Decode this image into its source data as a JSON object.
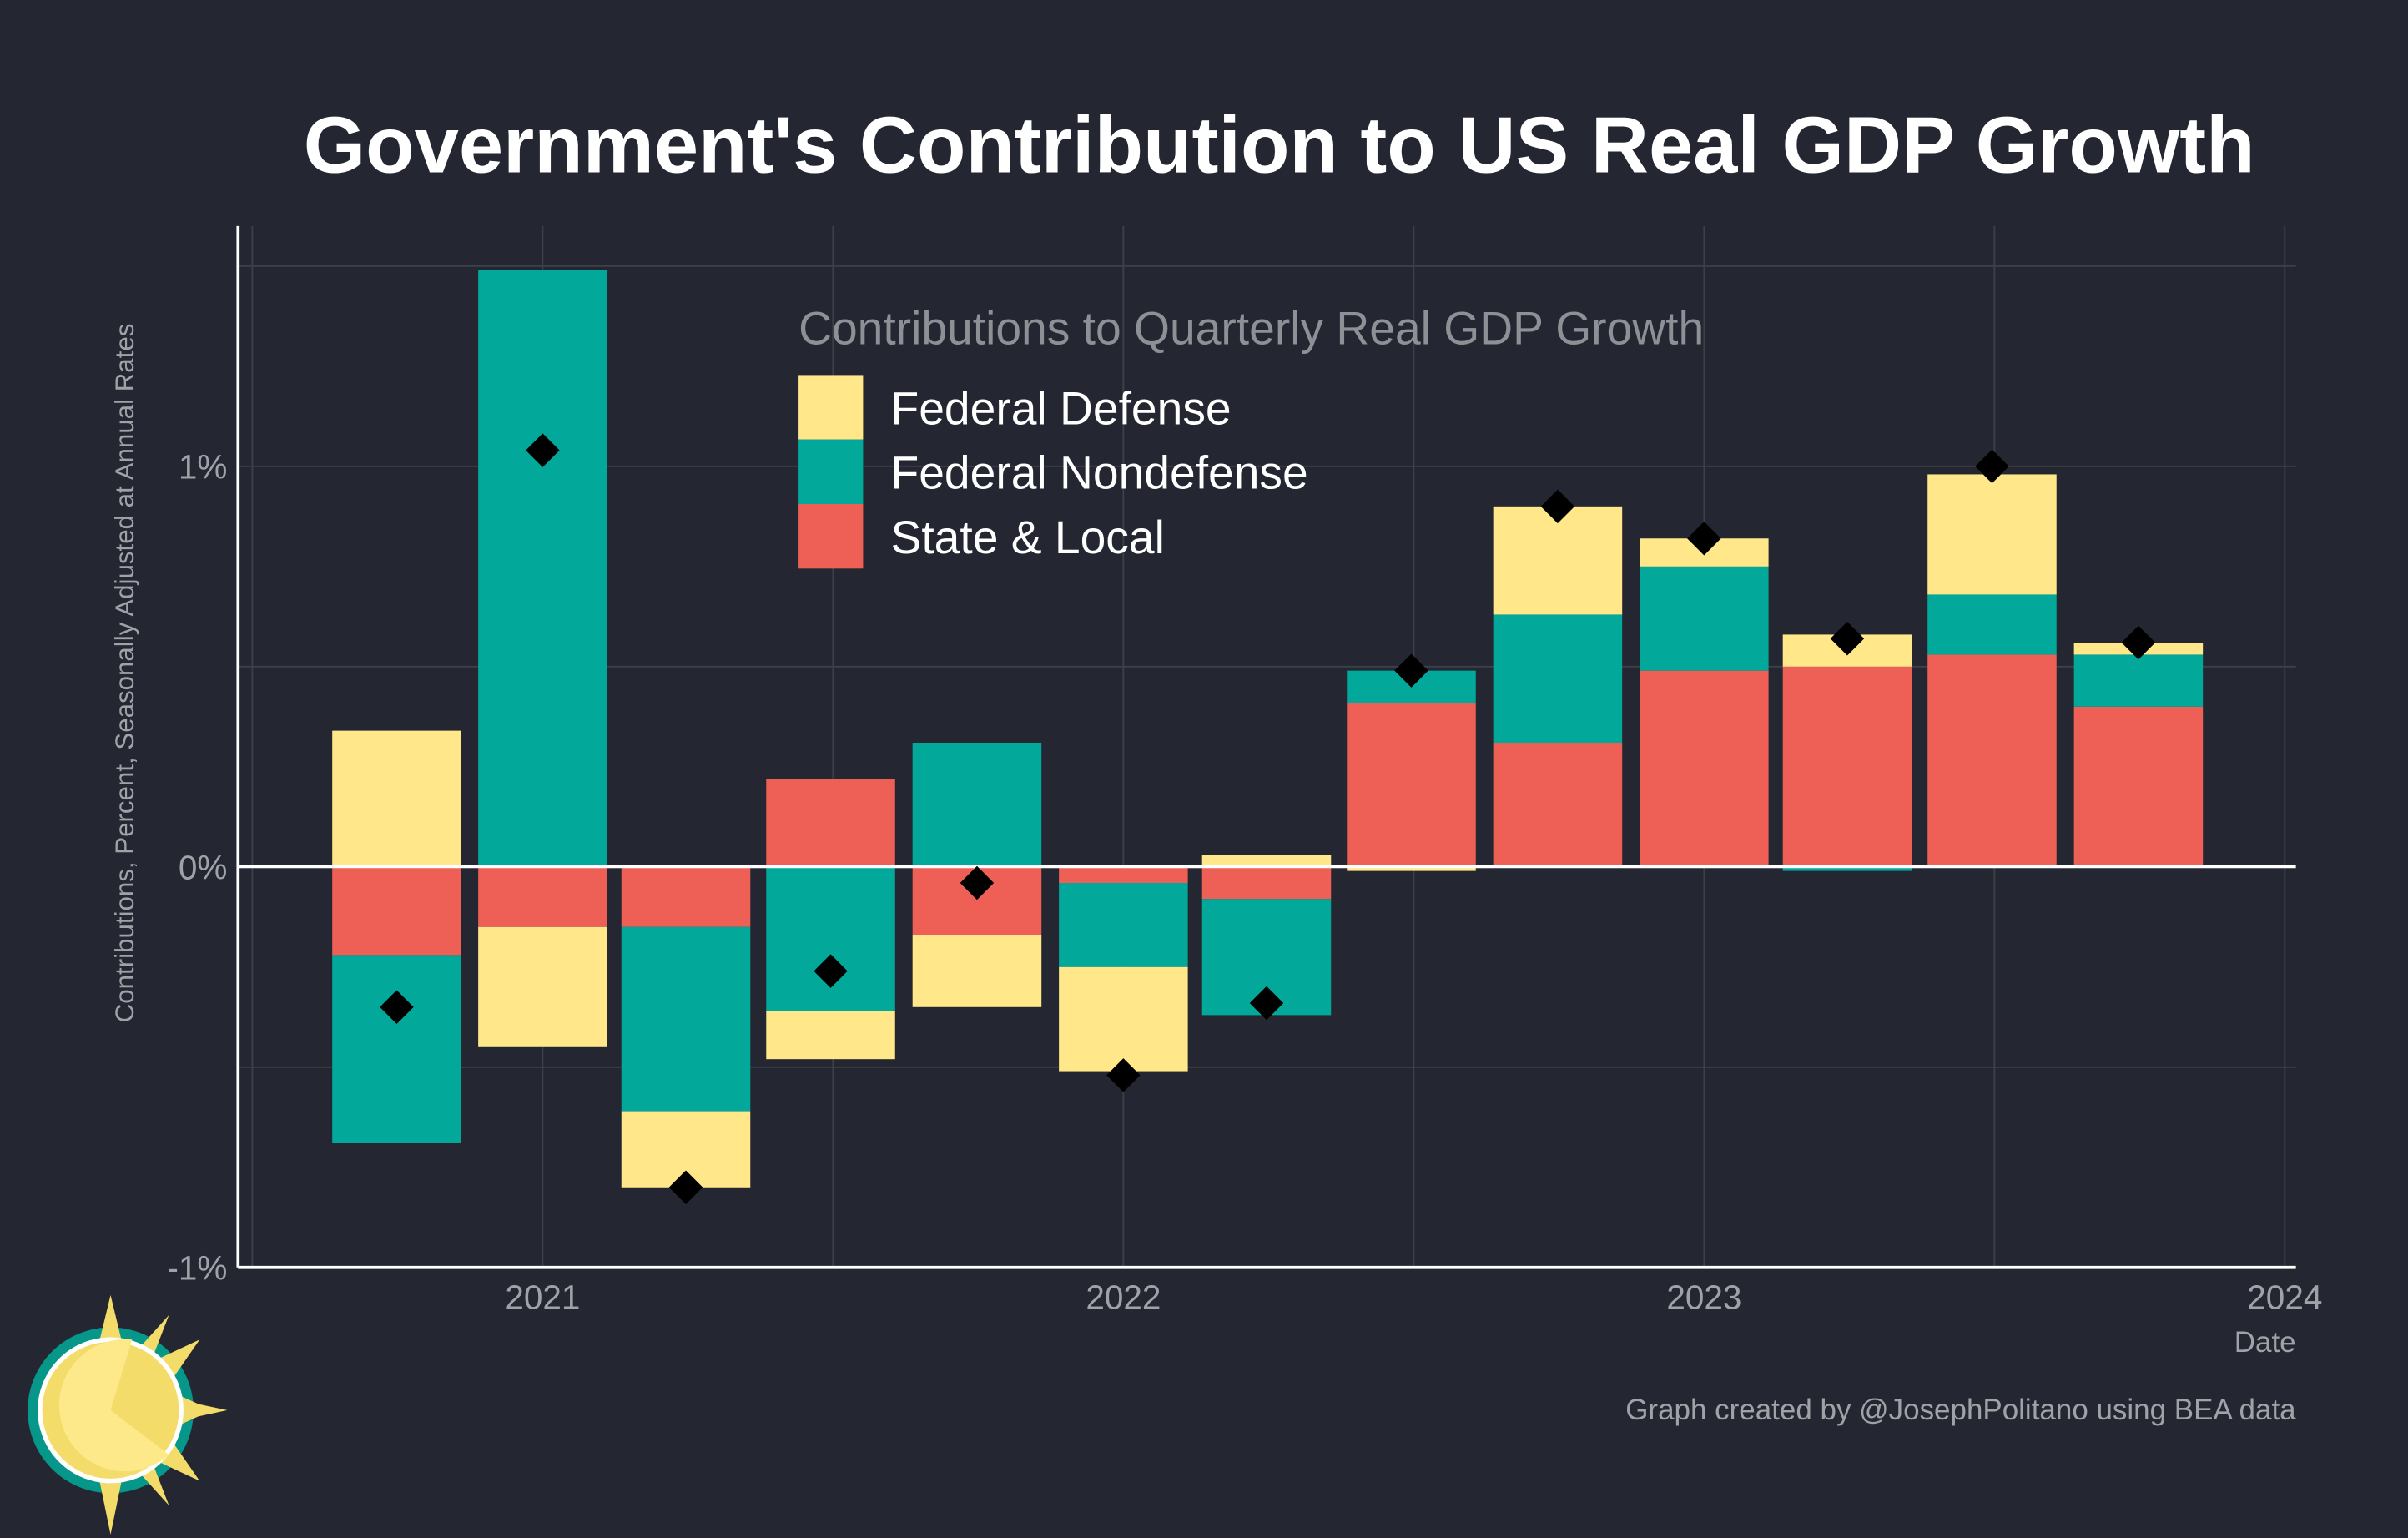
{
  "chart_data": {
    "type": "bar",
    "stacked": true,
    "title": "Government's Contribution to US Real GDP Growth",
    "xlabel": "Date",
    "ylabel": "Contributions, Percent, Seasonally Adjusted at Annual Rates",
    "ylim": [
      -1.0,
      1.6
    ],
    "xlim": [
      "2020-06-23",
      "2024-01-08"
    ],
    "y_ticks": [
      {
        "value": -1,
        "label": "-1%"
      },
      {
        "value": 0,
        "label": "0%"
      },
      {
        "value": 1,
        "label": "1%"
      }
    ],
    "x_ticks": [
      {
        "value": "2021-01-01",
        "label": "2021"
      },
      {
        "value": "2022-01-01",
        "label": "2022"
      },
      {
        "value": "2023-01-01",
        "label": "2023"
      },
      {
        "value": "2024-01-01",
        "label": "2024"
      }
    ],
    "grid": true,
    "legend_title": "Contributions to Quarterly Real GDP Growth",
    "legend_position": "top-center",
    "dates": [
      "2020-10-01",
      "2021-01-01",
      "2021-04-01",
      "2021-07-01",
      "2021-10-01",
      "2022-01-01",
      "2022-04-01",
      "2022-07-01",
      "2022-10-01",
      "2023-01-01",
      "2023-04-01",
      "2023-07-01",
      "2023-10-01"
    ],
    "series": [
      {
        "name": "State & Local",
        "color": "#ee6055",
        "values": [
          -0.22,
          -0.15,
          -0.15,
          0.22,
          -0.17,
          -0.04,
          -0.08,
          0.41,
          0.31,
          0.49,
          0.5,
          0.53,
          0.4
        ]
      },
      {
        "name": "Federal Nondefense",
        "color": "#02a99b",
        "values": [
          -0.47,
          1.49,
          -0.46,
          -0.36,
          0.31,
          -0.21,
          -0.29,
          0.08,
          0.32,
          0.26,
          -0.01,
          0.15,
          0.13
        ]
      },
      {
        "name": "Federal Defense",
        "color": "#ffe78a",
        "values": [
          0.34,
          -0.3,
          -0.19,
          -0.12,
          -0.18,
          -0.26,
          0.03,
          -0.01,
          0.27,
          0.07,
          0.08,
          0.3,
          0.03
        ]
      }
    ],
    "total": {
      "marker": "diamond",
      "color": "#000000",
      "values": [
        -0.35,
        1.04,
        -0.8,
        -0.26,
        -0.04,
        -0.52,
        -0.34,
        0.49,
        0.9,
        0.82,
        0.57,
        1.0,
        0.56
      ]
    }
  },
  "credit": "Graph created by @JosephPolitano using BEA data"
}
